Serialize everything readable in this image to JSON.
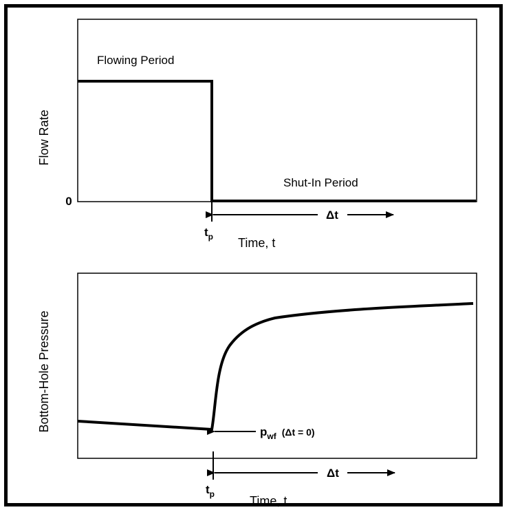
{
  "top_panel": {
    "y_label": "Flow Rate",
    "zero_tick": "0",
    "flowing_label": "Flowing Period",
    "shutin_label": "Shut-In Period",
    "delta_t": "Δt",
    "tp_main": "t",
    "tp_sub": "p",
    "x_label": "Time, t"
  },
  "bottom_panel": {
    "y_label": "Bottom-Hole Pressure",
    "pwf_main": "p",
    "pwf_sub": "wf",
    "pwf_cond": "(Δt = 0)",
    "delta_t": "Δt",
    "tp_main": "t",
    "tp_sub": "p",
    "x_label": "Time, t"
  }
}
